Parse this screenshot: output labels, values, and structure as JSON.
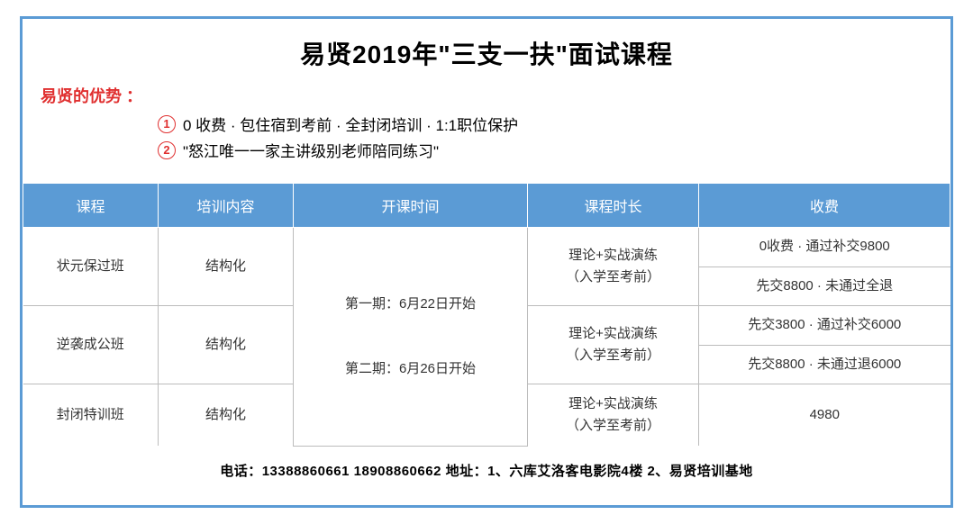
{
  "title": "易贤2019年\"三支一扶\"面试课程",
  "advantages": {
    "label": "易贤的优势 ：",
    "items": [
      "0 收费 · 包住宿到考前 · 全封闭培训 · 1:1职位保护",
      "\"怒江唯一一家主讲级别老师陪同练习\""
    ]
  },
  "table": {
    "headers": [
      "课程",
      "培训内容",
      "开课时间",
      "课程时长",
      "收费"
    ],
    "time_merged": "第一期：6月22日开始\n\n第二期：6月26日开始",
    "rows": [
      {
        "course": "状元保过班",
        "content": "结构化",
        "duration": "理论+实战演练\n（入学至考前）",
        "fees": [
          "0收费 · 通过补交9800",
          "先交8800 · 未通过全退"
        ]
      },
      {
        "course": "逆袭成公班",
        "content": "结构化",
        "duration": "理论+实战演练\n（入学至考前）",
        "fees": [
          "先交3800 · 通过补交6000",
          "先交8800 · 未通过退6000"
        ]
      },
      {
        "course": "封闭特训班",
        "content": "结构化",
        "duration": "理论+实战演练\n（入学至考前）",
        "fees": [
          "4980"
        ]
      }
    ]
  },
  "footer": "电话：13388860661  18908860662   地址：1、六库艾洛客电影院4楼  2、易贤培训基地",
  "colors": {
    "primary": "#5b9bd5",
    "accent_red": "#e03030",
    "border_gray": "#bcbcbc",
    "text": "#000000"
  }
}
